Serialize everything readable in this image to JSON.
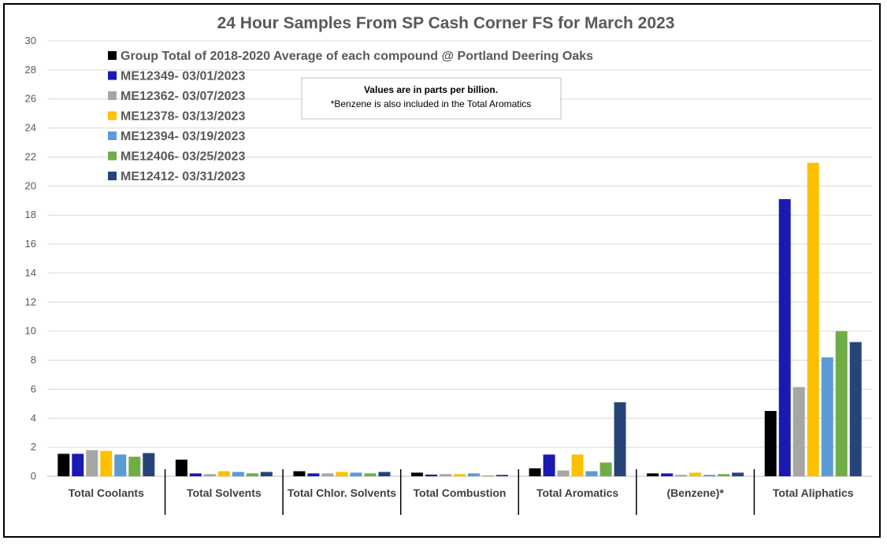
{
  "chart_data": {
    "type": "bar",
    "title": "24 Hour Samples From SP Cash Corner FS for March 2023",
    "xlabel": "",
    "ylabel": "",
    "ylim": [
      0,
      30
    ],
    "yticks": [
      0,
      2,
      4,
      6,
      8,
      10,
      12,
      14,
      16,
      18,
      20,
      22,
      24,
      26,
      28,
      30
    ],
    "grid": true,
    "legend_position": "top-left",
    "categories": [
      "Total Coolants",
      "Total Solvents",
      "Total Chlor. Solvents",
      "Total Combustion",
      "Total Aromatics",
      "(Benzene)*",
      "Total Aliphatics"
    ],
    "series": [
      {
        "name": "Group Total of 2018-2020 Average of each compound @ Portland Deering Oaks",
        "color": "#000000",
        "values": [
          1.55,
          1.15,
          0.35,
          0.25,
          0.55,
          0.2,
          4.5
        ]
      },
      {
        "name": "ME12349- 03/01/2023",
        "color": "#1a1ab2",
        "values": [
          1.55,
          0.2,
          0.2,
          0.12,
          1.5,
          0.2,
          19.1
        ]
      },
      {
        "name": "ME12362- 03/07/2023",
        "color": "#a6a6a6",
        "values": [
          1.8,
          0.15,
          0.2,
          0.15,
          0.4,
          0.1,
          6.15
        ]
      },
      {
        "name": "ME12378- 03/13/2023",
        "color": "#ffc000",
        "values": [
          1.75,
          0.35,
          0.3,
          0.15,
          1.5,
          0.25,
          21.6
        ]
      },
      {
        "name": "ME12394- 03/19/2023",
        "color": "#5b9bd5",
        "values": [
          1.5,
          0.3,
          0.25,
          0.2,
          0.35,
          0.1,
          8.2
        ]
      },
      {
        "name": "ME12406- 03/25/2023",
        "color": "#70ad47",
        "values": [
          1.35,
          0.2,
          0.2,
          0.05,
          0.95,
          0.15,
          10.0
        ]
      },
      {
        "name": "ME12412- 03/31/2023",
        "color": "#264478",
        "values": [
          1.6,
          0.3,
          0.3,
          0.1,
          5.1,
          0.25,
          9.25
        ]
      }
    ],
    "note": {
      "line1": "Values are in parts per billion.",
      "line2": "*Benzene is also included in the Total Aromatics"
    }
  }
}
